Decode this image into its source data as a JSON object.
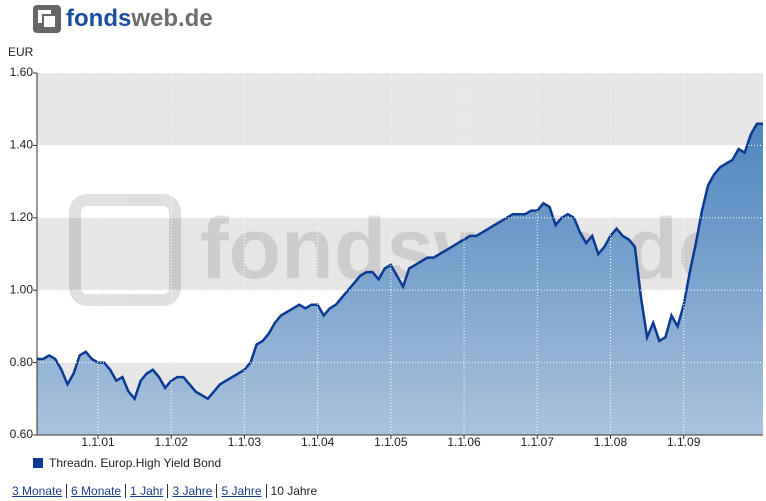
{
  "logo": [
    "fonds",
    "web.de"
  ],
  "chart_data": {
    "type": "area",
    "y_label": "EUR",
    "categories": [
      null,
      null,
      null,
      null,
      null,
      null,
      null,
      null,
      null,
      null,
      "1.1.01",
      null,
      null,
      null,
      null,
      null,
      null,
      null,
      null,
      null,
      null,
      null,
      "1.1.02",
      null,
      null,
      null,
      null,
      null,
      null,
      null,
      null,
      null,
      null,
      null,
      "1.1.03",
      null,
      null,
      null,
      null,
      null,
      null,
      null,
      null,
      null,
      null,
      null,
      "1.1.04",
      null,
      null,
      null,
      null,
      null,
      null,
      null,
      null,
      null,
      null,
      null,
      "1.1.05",
      null,
      null,
      null,
      null,
      null,
      null,
      null,
      null,
      null,
      null,
      null,
      "1.1.06",
      null,
      null,
      null,
      null,
      null,
      null,
      null,
      null,
      null,
      null,
      null,
      "1.1.07",
      null,
      null,
      null,
      null,
      null,
      null,
      null,
      null,
      null,
      null,
      null,
      "1.1.08",
      null,
      null,
      null,
      null,
      null,
      null,
      null,
      null,
      null,
      null,
      null,
      "1.1.09",
      null,
      null,
      null,
      null,
      null,
      null,
      null,
      null,
      null,
      null,
      null,
      null,
      null
    ],
    "series": [
      {
        "name": "Threadn. Europ.High Yield Bond",
        "color": "#0a3a94",
        "values": [
          0.81,
          0.81,
          0.82,
          0.81,
          0.78,
          0.74,
          0.77,
          0.82,
          0.83,
          0.81,
          0.8,
          0.8,
          0.78,
          0.75,
          0.76,
          0.72,
          0.7,
          0.75,
          0.77,
          0.78,
          0.76,
          0.73,
          0.75,
          0.76,
          0.76,
          0.74,
          0.72,
          0.71,
          0.7,
          0.72,
          0.74,
          0.75,
          0.76,
          0.77,
          0.78,
          0.8,
          0.85,
          0.86,
          0.88,
          0.91,
          0.93,
          0.94,
          0.95,
          0.96,
          0.95,
          0.96,
          0.96,
          0.93,
          0.95,
          0.96,
          0.98,
          1.0,
          1.02,
          1.04,
          1.05,
          1.05,
          1.03,
          1.06,
          1.07,
          1.04,
          1.01,
          1.06,
          1.07,
          1.08,
          1.09,
          1.09,
          1.1,
          1.11,
          1.12,
          1.13,
          1.14,
          1.15,
          1.15,
          1.16,
          1.17,
          1.18,
          1.19,
          1.2,
          1.21,
          1.21,
          1.21,
          1.22,
          1.22,
          1.24,
          1.23,
          1.18,
          1.2,
          1.21,
          1.2,
          1.16,
          1.13,
          1.15,
          1.1,
          1.12,
          1.15,
          1.17,
          1.15,
          1.14,
          1.12,
          0.98,
          0.87,
          0.91,
          0.86,
          0.87,
          0.93,
          0.9,
          0.96,
          1.05,
          1.13,
          1.22,
          1.29,
          1.32,
          1.34,
          1.35,
          1.36,
          1.39,
          1.38,
          1.43,
          1.46,
          1.46
        ]
      }
    ],
    "ylim": [
      0.6,
      1.6
    ],
    "yticks": [
      {
        "value": 0.6,
        "label": "0.60"
      },
      {
        "value": 0.8,
        "label": "0.80"
      },
      {
        "value": 1.0,
        "label": "1.00"
      },
      {
        "value": 1.2,
        "label": "1.20"
      },
      {
        "value": 1.4,
        "label": "1.40"
      },
      {
        "value": 1.6,
        "label": "1.60"
      }
    ],
    "grid": true
  },
  "period_links": [
    "3 Monate",
    "6 Monate",
    "1 Jahr",
    "3 Jahre",
    "5 Jahre",
    "10 Jahre"
  ]
}
